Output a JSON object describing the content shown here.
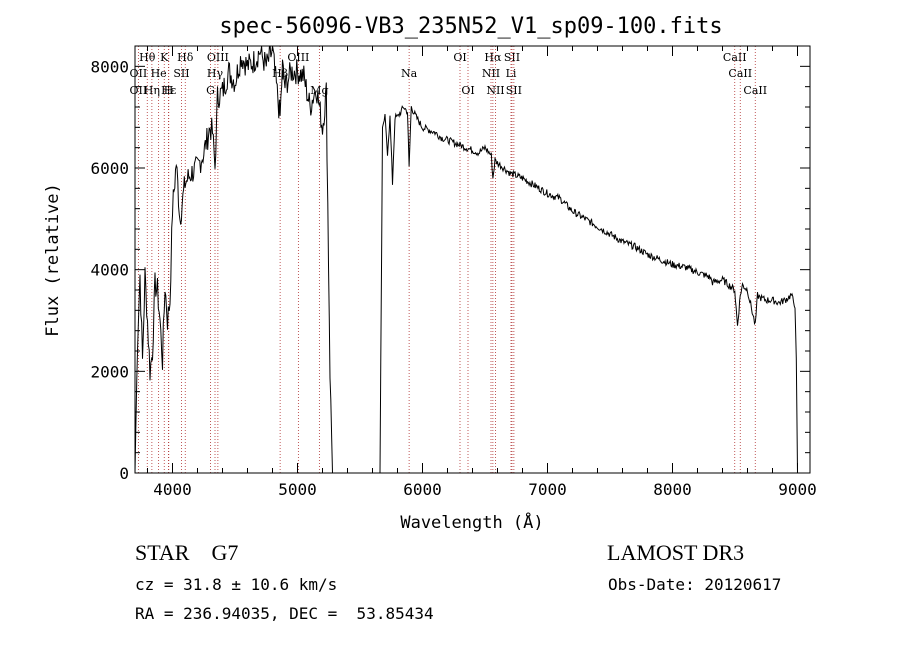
{
  "chart_data": {
    "type": "line",
    "title": "spec-56096-VB3_235N52_V1_sp09-100.fits",
    "xlabel": "Wavelength (Å)",
    "ylabel": "Flux (relative)",
    "xlim": [
      3700,
      9100
    ],
    "ylim": [
      0,
      8400
    ],
    "x_ticks": [
      4000,
      5000,
      6000,
      7000,
      8000,
      9000
    ],
    "y_ticks": [
      0,
      2000,
      4000,
      6000,
      8000
    ],
    "series": [
      {
        "name": "flux",
        "x": [
          3700,
          3720,
          3740,
          3760,
          3780,
          3800,
          3820,
          3840,
          3860,
          3880,
          3900,
          3920,
          3940,
          3960,
          3980,
          4000,
          4030,
          4060,
          4100,
          4150,
          4200,
          4250,
          4300,
          4320,
          4340,
          4360,
          4400,
          4450,
          4500,
          4550,
          4600,
          4650,
          4700,
          4750,
          4800,
          4850,
          4861,
          4880,
          4900,
          4950,
          5000,
          5050,
          5100,
          5150,
          5200,
          5230,
          5260,
          5280,
          5300,
          5660,
          5680,
          5700,
          5720,
          5740,
          5760,
          5780,
          5800,
          5850,
          5880,
          5893,
          5910,
          5950,
          6000,
          6050,
          6100,
          6150,
          6200,
          6250,
          6300,
          6350,
          6400,
          6450,
          6500,
          6550,
          6563,
          6580,
          6600,
          6650,
          6700,
          6800,
          6900,
          7000,
          7100,
          7200,
          7300,
          7400,
          7500,
          7600,
          7700,
          7800,
          7900,
          8000,
          8100,
          8200,
          8300,
          8320,
          8400,
          8450,
          8498,
          8520,
          8542,
          8560,
          8600,
          8662,
          8680,
          8700,
          8750,
          8800,
          8850,
          8900,
          8950,
          8980,
          8990,
          9000
        ],
        "y": [
          0,
          2600,
          3900,
          2200,
          3900,
          3000,
          2000,
          2400,
          3700,
          3600,
          3000,
          2200,
          3700,
          3000,
          3400,
          5200,
          6100,
          5000,
          5700,
          5900,
          6000,
          6300,
          6800,
          6700,
          6000,
          7400,
          7500,
          7900,
          7700,
          8200,
          8000,
          8100,
          8300,
          8000,
          8300,
          7200,
          7000,
          8000,
          7600,
          7900,
          7900,
          7800,
          7200,
          7600,
          6800,
          7500,
          2000,
          0,
          0,
          0,
          6800,
          7000,
          6300,
          7000,
          5700,
          7000,
          7000,
          7200,
          7100,
          6000,
          7200,
          7000,
          6800,
          6750,
          6700,
          6600,
          6550,
          6500,
          6450,
          6400,
          6350,
          6300,
          6400,
          6250,
          5800,
          6150,
          6100,
          6000,
          5900,
          5800,
          5650,
          5500,
          5400,
          5150,
          5000,
          4850,
          4700,
          4550,
          4450,
          4300,
          4200,
          4100,
          4050,
          3950,
          3850,
          3750,
          3800,
          3700,
          3600,
          2900,
          3500,
          3700,
          3600,
          2900,
          3500,
          3450,
          3400,
          3400,
          3350,
          3400,
          3500,
          3300,
          2200,
          0
        ]
      }
    ],
    "line_markers": [
      {
        "label": "Hθ",
        "x": 3798,
        "row": 0
      },
      {
        "label": "K",
        "x": 3934,
        "row": 0
      },
      {
        "label": "Hδ",
        "x": 4102,
        "row": 0
      },
      {
        "label": "OIII",
        "x": 4363,
        "row": 0
      },
      {
        "label": "OIII",
        "x": 5007,
        "row": 0
      },
      {
        "label": "OI",
        "x": 6300,
        "row": 0
      },
      {
        "label": "Hα",
        "x": 6563,
        "row": 0
      },
      {
        "label": "SII",
        "x": 6716,
        "row": 0
      },
      {
        "label": "CaII",
        "x": 8498,
        "row": 0
      },
      {
        "label": "OII",
        "x": 3727,
        "row": 1
      },
      {
        "label": "He",
        "x": 3889,
        "row": 1
      },
      {
        "label": "SII",
        "x": 4072,
        "row": 1
      },
      {
        "label": "Hγ",
        "x": 4340,
        "row": 1
      },
      {
        "label": "Hβ",
        "x": 4861,
        "row": 1
      },
      {
        "label": "Na",
        "x": 5893,
        "row": 1
      },
      {
        "label": "NII",
        "x": 6548,
        "row": 1
      },
      {
        "label": "Li",
        "x": 6708,
        "row": 1
      },
      {
        "label": "CaII",
        "x": 8542,
        "row": 1
      },
      {
        "label": "OII",
        "x": 3727,
        "row": 2
      },
      {
        "label": "Hε",
        "x": 3970,
        "row": 2
      },
      {
        "label": "Hη",
        "x": 3835,
        "row": 2
      },
      {
        "label": "H",
        "x": 3968,
        "row": 2
      },
      {
        "label": "G",
        "x": 4304,
        "row": 2
      },
      {
        "label": "Mg",
        "x": 5175,
        "row": 2
      },
      {
        "label": "OI",
        "x": 6364,
        "row": 2
      },
      {
        "label": "NII",
        "x": 6584,
        "row": 2
      },
      {
        "label": "SII",
        "x": 6731,
        "row": 2
      },
      {
        "label": "CaII",
        "x": 8662,
        "row": 2
      }
    ]
  },
  "footer": {
    "object": "STAR    G7",
    "survey": "LAMOST DR3",
    "cz": "cz = 31.8 ± 10.6 km/s",
    "obsdate": "Obs-Date: 20120617",
    "coords": "RA = 236.94035, DEC =  53.85434"
  },
  "colors": {
    "line": "#000000",
    "marker": "#b03030"
  }
}
